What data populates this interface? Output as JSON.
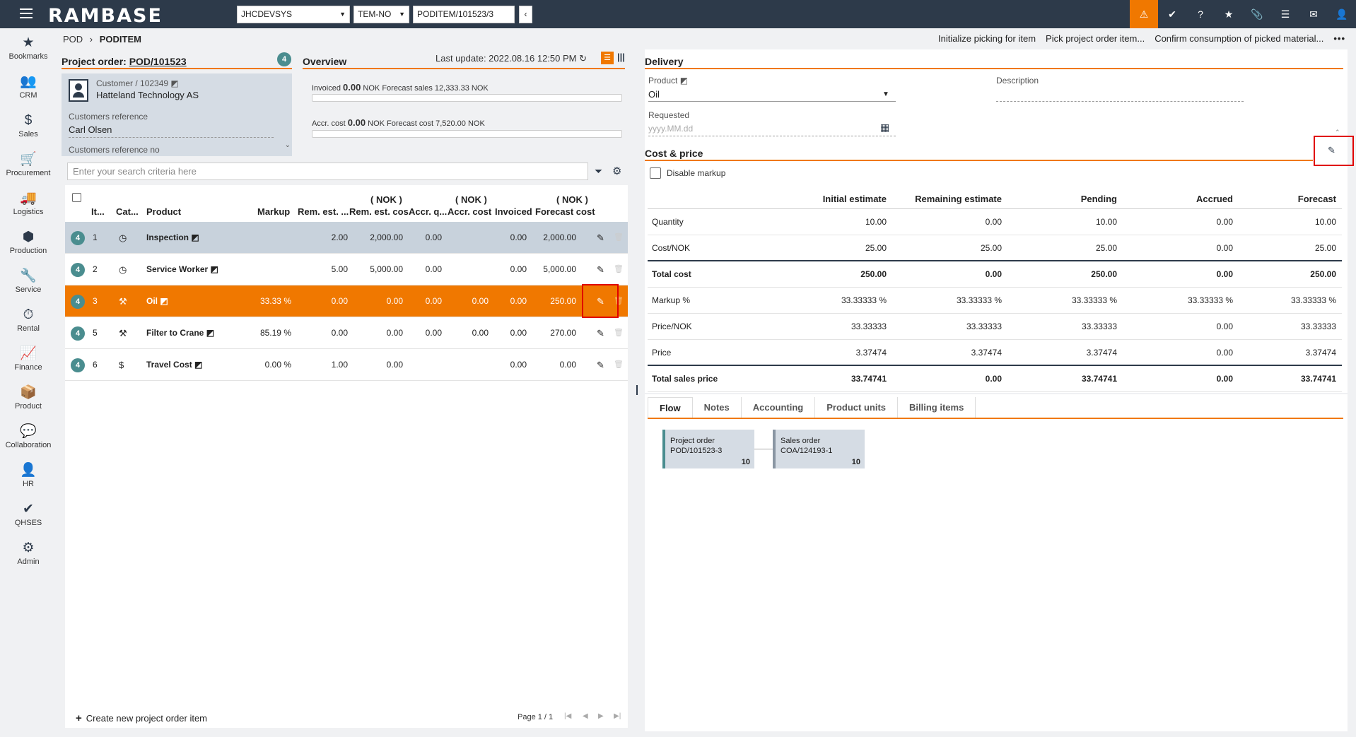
{
  "topbar": {
    "logo": "RAMBASE",
    "company": "JHCDEVSYS",
    "locale": "TEM-NO",
    "path": "PODITEM/101523/3",
    "back": "‹"
  },
  "sidebar": [
    {
      "icon": "★",
      "label": "Bookmarks"
    },
    {
      "icon": "👥",
      "label": "CRM"
    },
    {
      "icon": "$",
      "label": "Sales"
    },
    {
      "icon": "🛒",
      "label": "Procurement"
    },
    {
      "icon": "🚚",
      "label": "Logistics"
    },
    {
      "icon": "⬢",
      "label": "Production"
    },
    {
      "icon": "🔧",
      "label": "Service"
    },
    {
      "icon": "⏱",
      "label": "Rental"
    },
    {
      "icon": "📈",
      "label": "Finance"
    },
    {
      "icon": "📦",
      "label": "Product"
    },
    {
      "icon": "💬",
      "label": "Collaboration"
    },
    {
      "icon": "👤",
      "label": "HR"
    },
    {
      "icon": "✔",
      "label": "QHSES"
    },
    {
      "icon": "⚙",
      "label": "Admin"
    }
  ],
  "breadcrumb": {
    "parent": "POD",
    "sep": "›",
    "current": "PODITEM"
  },
  "actions": {
    "a1": "Initialize picking for item",
    "a2": "Pick project order item...",
    "a3": "Confirm consumption of picked material...",
    "more": "•••"
  },
  "project": {
    "title_prefix": "Project order:",
    "id": "POD/101523",
    "badge": "4",
    "customer_label": "Customer / 102349",
    "customer_name": "Hatteland Technology AS",
    "ref_label": "Customers reference",
    "ref_value": "Carl Olsen",
    "refno_label": "Customers reference no"
  },
  "overview": {
    "title": "Overview",
    "last_update": "Last update: 2022.08.16 12:50 PM",
    "inv_label": "Invoiced",
    "inv_value": "0.00",
    "inv_rest": "NOK Forecast sales 12,333.33 NOK",
    "acc_label": "Accr. cost",
    "acc_value": "0.00",
    "acc_rest": "NOK Forecast cost 7,520.00 NOK"
  },
  "search": {
    "placeholder": "Enter your search criteria here"
  },
  "table": {
    "headers": {
      "item": "It...",
      "cat": "Cat...",
      "product": "Product",
      "markup": "Markup",
      "remq": "Rem. est. ...",
      "remc_unit": "( NOK )",
      "remc": "Rem. est. cos",
      "accq": "Accr. q...",
      "accc_unit": "( NOK )",
      "accc": "Accr. cost",
      "inv": "Invoiced",
      "fc_unit": "( NOK )",
      "fc": "Forecast cost"
    },
    "rows": [
      {
        "badge": "4",
        "item": "1",
        "cat": "clock",
        "product": "Inspection",
        "markup": "",
        "remq": "2.00",
        "remc": "2,000.00",
        "accq": "0.00",
        "accc": "",
        "inv": "0.00",
        "fc": "2,000.00"
      },
      {
        "badge": "4",
        "item": "2",
        "cat": "clock",
        "product": "Service Worker",
        "markup": "",
        "remq": "5.00",
        "remc": "5,000.00",
        "accq": "0.00",
        "accc": "",
        "inv": "0.00",
        "fc": "5,000.00"
      },
      {
        "badge": "4",
        "item": "3",
        "cat": "hammer",
        "product": "Oil",
        "markup": "33.33 %",
        "remq": "0.00",
        "remc": "0.00",
        "accq": "0.00",
        "accc": "0.00",
        "inv": "0.00",
        "fc": "250.00"
      },
      {
        "badge": "4",
        "item": "5",
        "cat": "hammer",
        "product": "Filter to Crane",
        "markup": "85.19 %",
        "remq": "0.00",
        "remc": "0.00",
        "accq": "0.00",
        "accc": "0.00",
        "inv": "0.00",
        "fc": "270.00"
      },
      {
        "badge": "4",
        "item": "6",
        "cat": "dollar",
        "product": "Travel Cost",
        "markup": "0.00 %",
        "remq": "1.00",
        "remc": "0.00",
        "accq": "",
        "accc": "",
        "inv": "0.00",
        "fc": "0.00"
      }
    ]
  },
  "footer": {
    "create": "Create new project order item",
    "pager": "Page 1 / 1"
  },
  "delivery": {
    "title": "Delivery",
    "product_label": "Product",
    "product_value": "Oil",
    "desc_label": "Description",
    "req_label": "Requested",
    "req_placeholder": "yyyy.MM.dd"
  },
  "costprice": {
    "title": "Cost & price",
    "disable_markup": "Disable markup",
    "cols": [
      "Initial estimate",
      "Remaining estimate",
      "Pending",
      "Accrued",
      "Forecast"
    ],
    "rows": [
      {
        "label": "Quantity",
        "vals": [
          "10.00",
          "0.00",
          "10.00",
          "0.00",
          "10.00"
        ]
      },
      {
        "label": "Cost/NOK",
        "vals": [
          "25.00",
          "25.00",
          "25.00",
          "0.00",
          "25.00"
        ]
      },
      {
        "label": "Total cost",
        "vals": [
          "250.00",
          "0.00",
          "250.00",
          "0.00",
          "250.00"
        ]
      },
      {
        "label": "Markup %",
        "vals": [
          "33.33333 %",
          "33.33333 %",
          "33.33333 %",
          "33.33333 %",
          "33.33333 %"
        ]
      },
      {
        "label": "Price/NOK",
        "vals": [
          "33.33333",
          "33.33333",
          "33.33333",
          "0.00",
          "33.33333"
        ]
      },
      {
        "label": "Price",
        "vals": [
          "3.37474",
          "3.37474",
          "3.37474",
          "0.00",
          "3.37474"
        ]
      },
      {
        "label": "Total sales price",
        "vals": [
          "33.74741",
          "0.00",
          "33.74741",
          "0.00",
          "33.74741"
        ]
      }
    ]
  },
  "tabs": [
    "Flow",
    "Notes",
    "Accounting",
    "Product units",
    "Billing items"
  ],
  "flow": [
    {
      "l1": "Project order",
      "l2": "POD/101523-3",
      "n": "10"
    },
    {
      "l1": "Sales order",
      "l2": "COA/124193-1",
      "n": "10"
    }
  ],
  "colors": {
    "accent": "#f07800",
    "nav": "#2d3a4a",
    "teal": "#4a8d8f",
    "red": "#e00000"
  }
}
